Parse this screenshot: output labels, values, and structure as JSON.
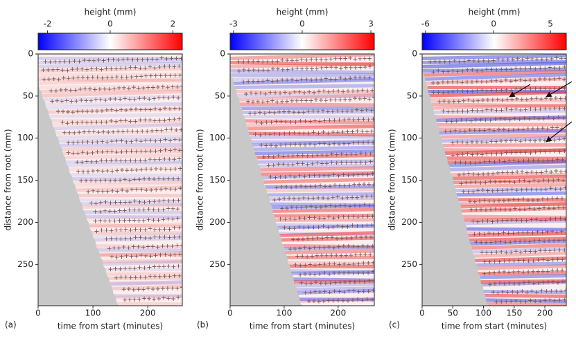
{
  "chart_data": [
    {
      "type": "heatmap",
      "panel_label": "(a)",
      "clabel": "height (mm)",
      "clim": [
        -2.3,
        2.3
      ],
      "cticks": [
        -2,
        0,
        2
      ],
      "cmap": "bwr",
      "xlabel": "time from start (minutes)",
      "xlim": [
        0,
        263
      ],
      "xticks": [
        0,
        100,
        200
      ],
      "ylabel": "distance from root (mm)",
      "ylim": [
        0,
        299
      ],
      "yticks": [
        0,
        50,
        100,
        150,
        200,
        250
      ],
      "y_inverted": true
    },
    {
      "type": "heatmap",
      "panel_label": "(b)",
      "clabel": "height (mm)",
      "clim": [
        -3.15,
        3.15
      ],
      "cticks": [
        -3,
        0,
        3
      ],
      "cmap": "bwr",
      "xlabel": "time from start (minutes)",
      "xlim": [
        0,
        267
      ],
      "xticks": [
        0,
        100,
        200
      ],
      "ylabel": "distance from root (mm)",
      "ylim": [
        0,
        299
      ],
      "yticks": [
        0,
        50,
        100,
        150,
        200,
        250
      ],
      "y_inverted": true
    },
    {
      "type": "heatmap",
      "panel_label": "(c)",
      "clabel": "height (mm)",
      "clim": [
        -6.3,
        6.4
      ],
      "cticks": [
        -6,
        0,
        5
      ],
      "cmap": "bwr",
      "xlabel": "time from start (minutes)",
      "xlim": [
        0,
        235
      ],
      "xticks": [
        0,
        50,
        100,
        150,
        200
      ],
      "ylabel": "distance from root (mm)",
      "ylim": [
        0,
        299
      ],
      "yticks": [
        0,
        50,
        100,
        150,
        200,
        250
      ],
      "y_inverted": true
    }
  ]
}
